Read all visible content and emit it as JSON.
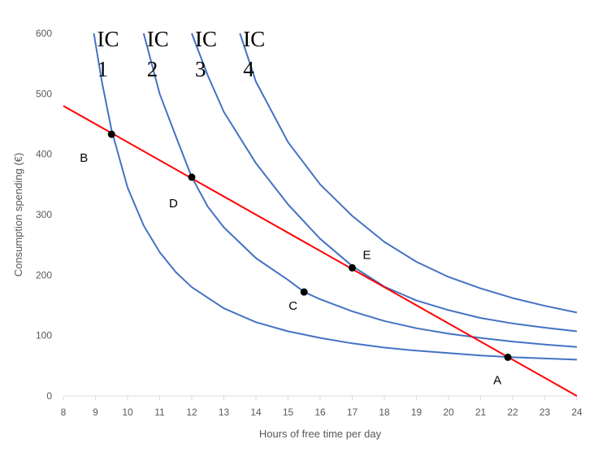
{
  "chart_data": {
    "type": "line",
    "xlabel": "Hours of free time per day",
    "ylabel": "Consumption spending (€)",
    "xlim": [
      8,
      24
    ],
    "ylim": [
      0,
      600
    ],
    "x_ticks": [
      8,
      9,
      10,
      11,
      12,
      13,
      14,
      15,
      16,
      17,
      18,
      19,
      20,
      21,
      22,
      23,
      24
    ],
    "y_ticks": [
      0,
      100,
      200,
      300,
      400,
      500,
      600
    ],
    "grid": false,
    "colors": {
      "indifference_curves": "#4472C4",
      "budget_line": "#FF0000",
      "points": "#000000",
      "axis": "#D9D9D9",
      "tick_text": "#595959"
    },
    "budget_line": {
      "points": [
        [
          8,
          480
        ],
        [
          24,
          0
        ]
      ]
    },
    "indifference_curves": [
      {
        "line1": "IC",
        "line2": "1",
        "points": [
          [
            8.95,
            600
          ],
          [
            9.2,
            520
          ],
          [
            9.5,
            440
          ],
          [
            10,
            345
          ],
          [
            10.5,
            282
          ],
          [
            11,
            238
          ],
          [
            11.5,
            205
          ],
          [
            12,
            180
          ],
          [
            13,
            145
          ],
          [
            14,
            122
          ],
          [
            15,
            107
          ],
          [
            16,
            96
          ],
          [
            17,
            87
          ],
          [
            18,
            80
          ],
          [
            19,
            75
          ],
          [
            20,
            71
          ],
          [
            21,
            67
          ],
          [
            22,
            64
          ],
          [
            23,
            62
          ],
          [
            24,
            60
          ]
        ]
      },
      {
        "line1": "IC",
        "line2": "2",
        "points": [
          [
            10.5,
            600
          ],
          [
            11,
            500
          ],
          [
            11.5,
            430
          ],
          [
            12,
            362
          ],
          [
            12.5,
            313
          ],
          [
            13,
            279
          ],
          [
            14,
            228
          ],
          [
            15,
            192
          ],
          [
            15.5,
            172
          ],
          [
            16,
            160
          ],
          [
            17,
            140
          ],
          [
            18,
            124
          ],
          [
            19,
            112
          ],
          [
            20,
            103
          ],
          [
            21,
            96
          ],
          [
            22,
            90
          ],
          [
            23,
            85
          ],
          [
            24,
            81
          ]
        ]
      },
      {
        "line1": "IC",
        "line2": "3",
        "points": [
          [
            12,
            600
          ],
          [
            12.5,
            530
          ],
          [
            13,
            470
          ],
          [
            14,
            385
          ],
          [
            15,
            317
          ],
          [
            16,
            260
          ],
          [
            17,
            215
          ],
          [
            18,
            181
          ],
          [
            19,
            158
          ],
          [
            20,
            142
          ],
          [
            21,
            129
          ],
          [
            22,
            120
          ],
          [
            23,
            113
          ],
          [
            24,
            107
          ]
        ]
      },
      {
        "line1": "IC",
        "line2": "4",
        "points": [
          [
            13.5,
            600
          ],
          [
            14,
            520
          ],
          [
            15,
            420
          ],
          [
            16,
            350
          ],
          [
            17,
            298
          ],
          [
            18,
            255
          ],
          [
            19,
            222
          ],
          [
            20,
            197
          ],
          [
            21,
            178
          ],
          [
            22,
            162
          ],
          [
            23,
            149
          ],
          [
            24,
            138
          ]
        ]
      }
    ],
    "points": [
      {
        "label": "A",
        "x": 21.85,
        "y": 64
      },
      {
        "label": "B",
        "x": 9.5,
        "y": 433
      },
      {
        "label": "C",
        "x": 15.5,
        "y": 172
      },
      {
        "label": "D",
        "x": 12,
        "y": 362
      },
      {
        "label": "E",
        "x": 17,
        "y": 212
      }
    ]
  }
}
